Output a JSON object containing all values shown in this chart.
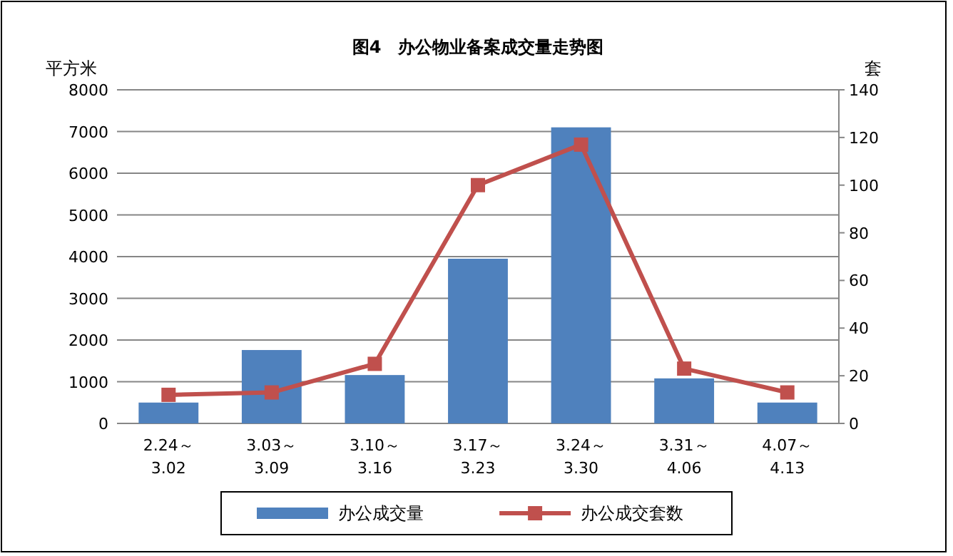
{
  "chart_data": {
    "type": "bar",
    "title": "图4　办公物业备案成交量走势图",
    "ylabel": "平方米",
    "y2label": "套",
    "categories": [
      "2.24～3.02",
      "3.03～3.09",
      "3.10～3.16",
      "3.17～3.23",
      "3.24～3.30",
      "3.31～4.06",
      "4.07～4.13"
    ],
    "series": [
      {
        "name": "办公成交量",
        "color": "#4f81bd",
        "values": [
          500,
          1760,
          1160,
          3950,
          7100,
          1080,
          500
        ]
      },
      {
        "name": "办公成交套数",
        "type": "line",
        "axis": "y2",
        "color": "#c0504d",
        "marker": "square",
        "values": [
          12,
          13,
          25,
          100,
          117,
          23,
          13
        ]
      }
    ],
    "ylim": [
      0,
      8000
    ],
    "yticks": [
      0,
      1000,
      2000,
      3000,
      4000,
      5000,
      6000,
      7000,
      8000
    ],
    "y2lim": [
      0,
      140
    ],
    "y2ticks": [
      0,
      20,
      40,
      60,
      80,
      100,
      120,
      140
    ],
    "grid": "y",
    "legend": "bottom"
  }
}
